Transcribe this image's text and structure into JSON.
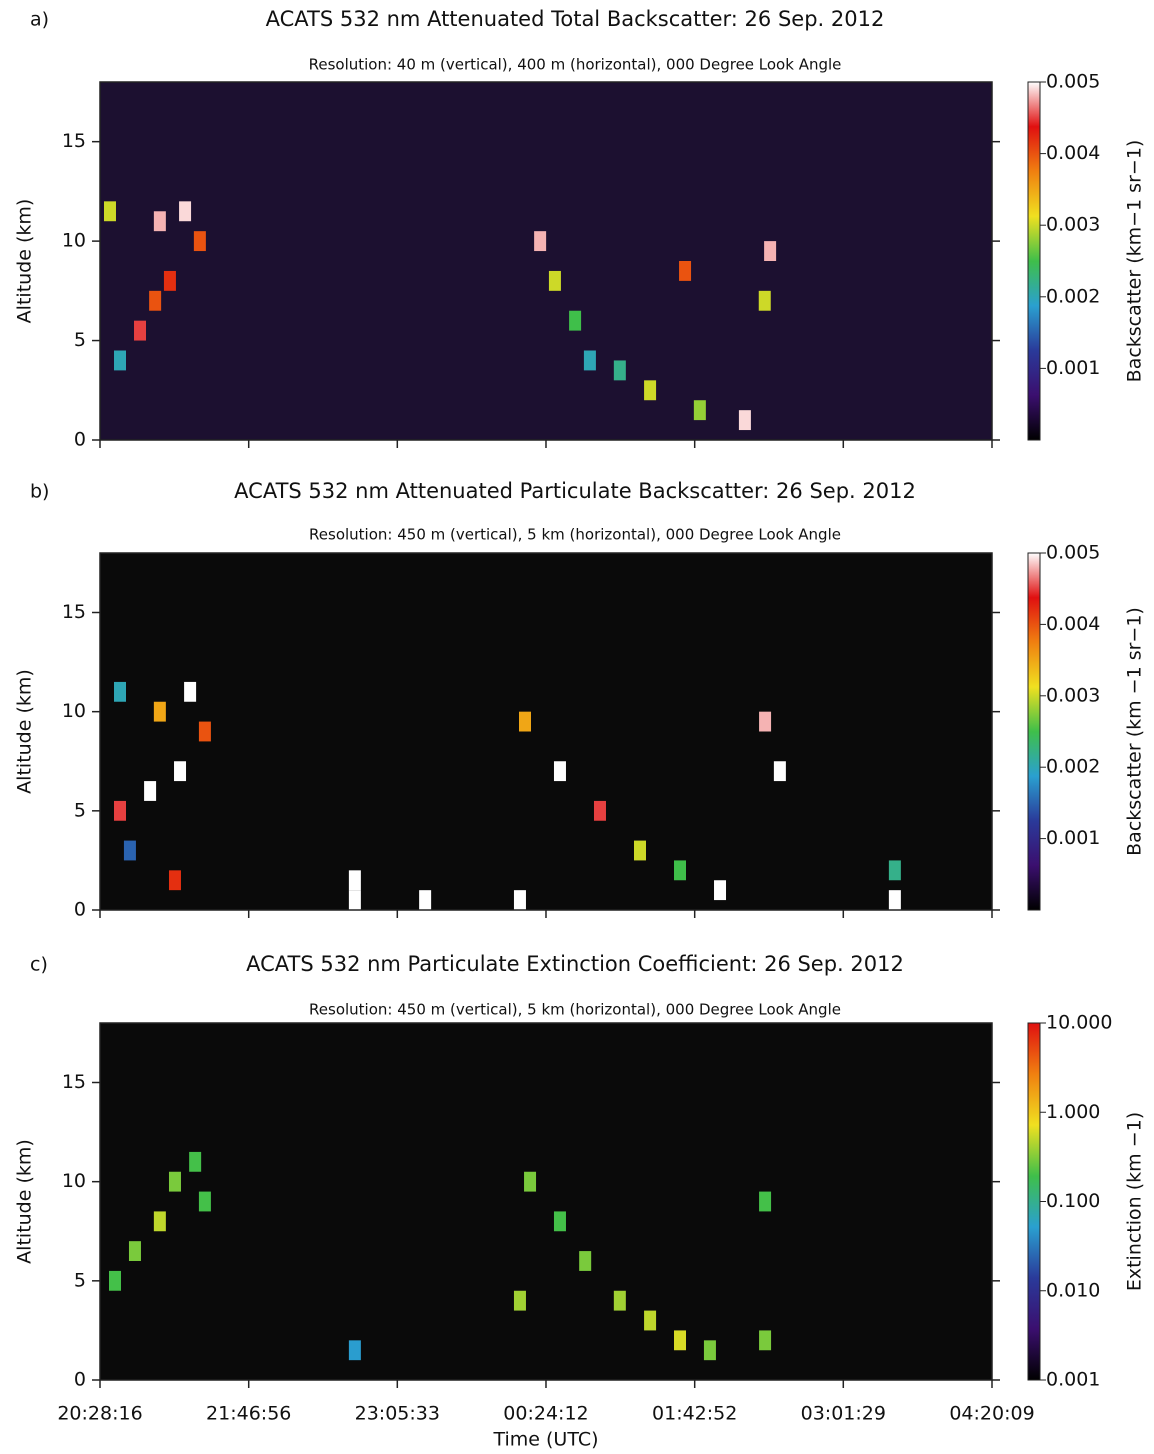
{
  "chart_data": [
    {
      "type": "heatmap",
      "panel_label": "a)",
      "title": "ACATS 532 nm Attenuated Total Backscatter: 26 Sep. 2012",
      "subtitle": "Resolution: 40 m (vertical), 400 m (horizontal), 000 Degree Look Angle",
      "ylabel": "Altitude (km)",
      "ylim": [
        0,
        18
      ],
      "yticks": [
        0,
        5,
        10,
        15
      ],
      "xlim": [
        0,
        28313
      ],
      "xticks": [
        0,
        4720,
        9437,
        14156,
        18876,
        23593,
        28313
      ],
      "background": "#1c1030",
      "colormap": [
        "#000000",
        "#3b0f6f",
        "#2a3a9a",
        "#2aa0d0",
        "#3fbf4a",
        "#f0e020",
        "#f08010",
        "#e01010",
        "#ffffff"
      ],
      "colorbar": {
        "label": "Backscatter (km−1 sr−1)",
        "scale": "linear",
        "lim": [
          0,
          0.005
        ],
        "ticks": [
          0.001,
          0.002,
          0.003,
          0.004,
          0.005
        ]
      },
      "cells": [
        [
          317,
          11.5,
          0.003
        ],
        [
          635,
          4,
          0.002
        ],
        [
          1270,
          5.5,
          0.0045
        ],
        [
          1750,
          7,
          0.004
        ],
        [
          1900,
          11,
          0.0048
        ],
        [
          2220,
          8,
          0.0042
        ],
        [
          2700,
          11.5,
          0.0049
        ],
        [
          3170,
          10,
          0.004
        ],
        [
          13970,
          10,
          0.0048
        ],
        [
          14440,
          8,
          0.003
        ],
        [
          15080,
          6,
          0.0025
        ],
        [
          15550,
          4,
          0.002
        ],
        [
          16500,
          3.5,
          0.0022
        ],
        [
          17460,
          2.5,
          0.003
        ],
        [
          18570,
          8.5,
          0.004
        ],
        [
          19040,
          1.5,
          0.0028
        ],
        [
          20470,
          1,
          0.0049
        ],
        [
          21100,
          7,
          0.003
        ],
        [
          21270,
          9.5,
          0.0048
        ]
      ]
    },
    {
      "type": "heatmap",
      "panel_label": "b)",
      "title": "ACATS 532 nm Attenuated Particulate Backscatter: 26 Sep. 2012",
      "subtitle": "Resolution: 450 m (vertical), 5 km (horizontal), 000 Degree Look Angle",
      "ylabel": "Altitude (km)",
      "ylim": [
        0,
        18
      ],
      "yticks": [
        0,
        5,
        10,
        15
      ],
      "xlim": [
        0,
        28313
      ],
      "xticks": [
        0,
        4720,
        9437,
        14156,
        18876,
        23593,
        28313
      ],
      "background": "#0a0a0a",
      "colormap": [
        "#000000",
        "#3b0f6f",
        "#2a3a9a",
        "#2aa0d0",
        "#3fbf4a",
        "#f0e020",
        "#f08010",
        "#e01010",
        "#ffffff"
      ],
      "colorbar": {
        "label": "Backscatter (km −1 sr−1)",
        "scale": "linear",
        "lim": [
          0,
          0.005
        ],
        "ticks": [
          0.001,
          0.002,
          0.003,
          0.004,
          0.005
        ]
      },
      "cells": [
        [
          635,
          11,
          0.002
        ],
        [
          635,
          5,
          0.0045
        ],
        [
          950,
          3,
          0.0015
        ],
        [
          1590,
          6,
          0.005
        ],
        [
          1900,
          10,
          0.0035
        ],
        [
          2380,
          1.5,
          0.0042
        ],
        [
          2540,
          7,
          0.005
        ],
        [
          2860,
          11,
          0.005
        ],
        [
          3330,
          9,
          0.004
        ],
        [
          8090,
          1.5,
          0.005
        ],
        [
          8090,
          0.5,
          0.005
        ],
        [
          10320,
          0.5,
          0.005
        ],
        [
          13330,
          0.5,
          0.005
        ],
        [
          13490,
          9.5,
          0.0035
        ],
        [
          14600,
          7,
          0.005
        ],
        [
          15870,
          5,
          0.0045
        ],
        [
          17140,
          3,
          0.003
        ],
        [
          18410,
          2,
          0.0025
        ],
        [
          19680,
          1,
          0.005
        ],
        [
          21110,
          9.5,
          0.0048
        ],
        [
          21580,
          7,
          0.005
        ],
        [
          25230,
          2,
          0.0022
        ],
        [
          25230,
          0.5,
          0.005
        ]
      ]
    },
    {
      "type": "heatmap",
      "panel_label": "c)",
      "title": "ACATS 532 nm Particulate Extinction Coefficient: 26 Sep. 2012",
      "subtitle": "Resolution: 450 m (vertical), 5 km (horizontal), 000 Degree Look Angle",
      "ylabel": "Altitude (km)",
      "xlabel": "Time (UTC)",
      "ylim": [
        0,
        18
      ],
      "yticks": [
        0,
        5,
        10,
        15
      ],
      "xlim": [
        0,
        28313
      ],
      "xticks": [
        {
          "value": 0,
          "label": "20:28:16"
        },
        {
          "value": 4720,
          "label": "21:46:56"
        },
        {
          "value": 9437,
          "label": "23:05:33"
        },
        {
          "value": 14156,
          "label": "00:24:12"
        },
        {
          "value": 18876,
          "label": "01:42:52"
        },
        {
          "value": 23593,
          "label": "03:01:29"
        },
        {
          "value": 28313,
          "label": "04:20:09"
        }
      ],
      "background": "#0a0a0a",
      "colormap": [
        "#000000",
        "#3b0f6f",
        "#2a3a9a",
        "#2aa0d0",
        "#3fbf4a",
        "#f0e020",
        "#f08010",
        "#e01010"
      ],
      "colorbar": {
        "label": "Extinction (km −1)",
        "scale": "log",
        "lim": [
          0.001,
          10
        ],
        "ticks": [
          {
            "value": 0.001,
            "label": "0.001"
          },
          {
            "value": 0.01,
            "label": "0.010"
          },
          {
            "value": 0.1,
            "label": "0.100"
          },
          {
            "value": 1,
            "label": "1.000"
          },
          {
            "value": 10,
            "label": "10.000"
          }
        ]
      },
      "cells": [
        [
          476,
          5,
          0.2
        ],
        [
          1110,
          6.5,
          0.3
        ],
        [
          1900,
          8,
          0.5
        ],
        [
          2380,
          10,
          0.3
        ],
        [
          3020,
          11,
          0.2
        ],
        [
          3330,
          9,
          0.2
        ],
        [
          8090,
          1.5,
          0.05
        ],
        [
          13330,
          4,
          0.4
        ],
        [
          13650,
          10,
          0.3
        ],
        [
          14600,
          8,
          0.2
        ],
        [
          15400,
          6,
          0.3
        ],
        [
          16500,
          4,
          0.4
        ],
        [
          17460,
          3,
          0.5
        ],
        [
          18410,
          2,
          0.6
        ],
        [
          19360,
          1.5,
          0.3
        ],
        [
          21110,
          9,
          0.2
        ],
        [
          21110,
          2,
          0.3
        ]
      ]
    }
  ]
}
